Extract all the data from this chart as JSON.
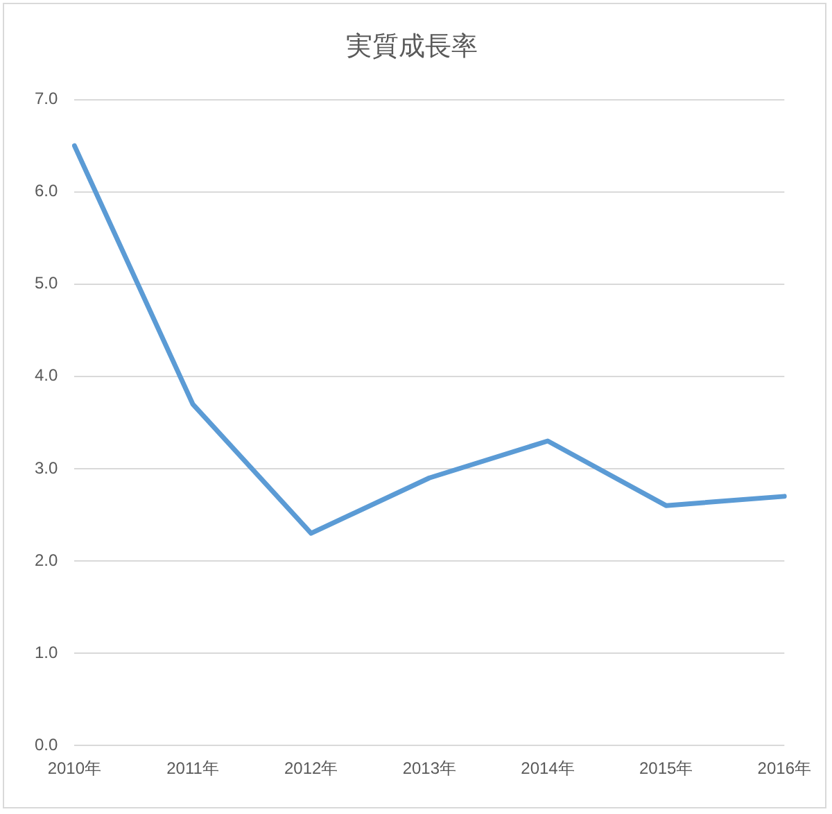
{
  "chart_data": {
    "type": "line",
    "title": "実質成長率",
    "categories": [
      "2010年",
      "2011年",
      "2012年",
      "2013年",
      "2014年",
      "2015年",
      "2016年"
    ],
    "series": [
      {
        "color": "#5b9bd5",
        "values": [
          6.5,
          3.7,
          2.3,
          2.9,
          3.3,
          2.6,
          2.7
        ]
      }
    ],
    "ylim": [
      0,
      7
    ],
    "yticks": [
      {
        "value": 0,
        "label": "0.0"
      },
      {
        "value": 1,
        "label": "1.0"
      },
      {
        "value": 2,
        "label": "2.0"
      },
      {
        "value": 3,
        "label": "3.0"
      },
      {
        "value": 4,
        "label": "4.0"
      },
      {
        "value": 5,
        "label": "5.0"
      },
      {
        "value": 6,
        "label": "6.0"
      },
      {
        "value": 7,
        "label": "7.0"
      }
    ],
    "grid": "y",
    "legend": false,
    "marker": "none",
    "line_style": "solid"
  }
}
